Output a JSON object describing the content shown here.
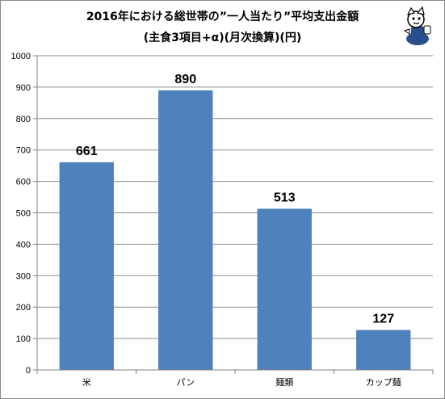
{
  "chart_data": {
    "type": "bar",
    "title": "2016年における総世帯の”一人当たり”平均支出金額",
    "subtitle": "(主食3項目+α)(月次換算)(円)",
    "categories": [
      "米",
      "パン",
      "麺類",
      "カップ麺"
    ],
    "values": [
      661,
      890,
      513,
      127
    ],
    "data_labels": [
      "661",
      "890",
      "513",
      "127"
    ],
    "ylim": [
      0,
      1000
    ],
    "yticks": [
      0,
      100,
      200,
      300,
      400,
      500,
      600,
      700,
      800,
      900,
      1000
    ],
    "grid": true,
    "legend": "none",
    "bar_color": "#4f81bd",
    "grid_color": "#8c8c8c"
  },
  "mascot": {
    "icon": "mascot-character-icon",
    "colors": [
      "#2a4f8c",
      "#ffffff",
      "#000000"
    ]
  }
}
